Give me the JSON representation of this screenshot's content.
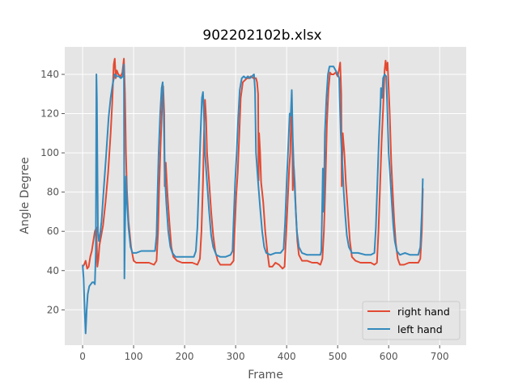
{
  "chart_data": {
    "type": "line",
    "title": "902202102b.xlsx",
    "xlabel": "Frame",
    "ylabel": "Angle Degree",
    "xlim": [
      -35,
      752
    ],
    "ylim": [
      2,
      154
    ],
    "xticks": [
      0,
      100,
      200,
      300,
      400,
      500,
      600,
      700
    ],
    "yticks": [
      20,
      40,
      60,
      80,
      100,
      120,
      140
    ],
    "grid": true,
    "legend_position": "lower-right",
    "series": [
      {
        "name": "right hand",
        "color": "#E24A33",
        "points": [
          [
            0,
            42
          ],
          [
            3,
            43
          ],
          [
            6,
            45
          ],
          [
            9,
            41
          ],
          [
            12,
            42
          ],
          [
            15,
            47
          ],
          [
            18,
            50
          ],
          [
            21,
            55
          ],
          [
            24,
            60
          ],
          [
            27,
            62
          ],
          [
            29,
            42
          ],
          [
            31,
            46
          ],
          [
            33,
            53
          ],
          [
            36,
            57
          ],
          [
            40,
            63
          ],
          [
            45,
            75
          ],
          [
            50,
            90
          ],
          [
            55,
            110
          ],
          [
            58,
            125
          ],
          [
            61,
            145
          ],
          [
            63,
            148
          ],
          [
            65,
            138
          ],
          [
            67,
            142
          ],
          [
            70,
            140
          ],
          [
            75,
            139
          ],
          [
            78,
            141
          ],
          [
            81,
            148
          ],
          [
            83,
            130
          ],
          [
            85,
            100
          ],
          [
            87,
            80
          ],
          [
            90,
            65
          ],
          [
            95,
            52
          ],
          [
            100,
            45
          ],
          [
            105,
            44
          ],
          [
            115,
            44
          ],
          [
            130,
            44
          ],
          [
            140,
            43
          ],
          [
            145,
            45
          ],
          [
            148,
            60
          ],
          [
            150,
            82
          ],
          [
            153,
            105
          ],
          [
            156,
            125
          ],
          [
            158,
            134
          ],
          [
            160,
            120
          ],
          [
            161,
            83
          ],
          [
            163,
            95
          ],
          [
            166,
            80
          ],
          [
            170,
            65
          ],
          [
            174,
            52
          ],
          [
            178,
            47
          ],
          [
            185,
            45
          ],
          [
            195,
            44
          ],
          [
            205,
            44
          ],
          [
            215,
            44
          ],
          [
            225,
            43
          ],
          [
            230,
            46
          ],
          [
            233,
            60
          ],
          [
            236,
            85
          ],
          [
            238,
            110
          ],
          [
            240,
            127
          ],
          [
            242,
            118
          ],
          [
            244,
            100
          ],
          [
            248,
            85
          ],
          [
            252,
            70
          ],
          [
            256,
            58
          ],
          [
            260,
            50
          ],
          [
            265,
            45
          ],
          [
            270,
            43
          ],
          [
            280,
            43
          ],
          [
            290,
            43
          ],
          [
            296,
            45
          ],
          [
            298,
            60
          ],
          [
            301,
            78
          ],
          [
            304,
            90
          ],
          [
            307,
            108
          ],
          [
            310,
            128
          ],
          [
            314,
            136
          ],
          [
            318,
            137
          ],
          [
            322,
            138
          ],
          [
            326,
            138
          ],
          [
            330,
            139
          ],
          [
            335,
            138
          ],
          [
            340,
            138
          ],
          [
            342,
            136
          ],
          [
            344,
            130
          ],
          [
            345,
            86
          ],
          [
            346,
            110
          ],
          [
            348,
            100
          ],
          [
            350,
            85
          ],
          [
            354,
            75
          ],
          [
            358,
            60
          ],
          [
            362,
            50
          ],
          [
            366,
            42
          ],
          [
            372,
            42
          ],
          [
            378,
            44
          ],
          [
            385,
            43
          ],
          [
            392,
            41
          ],
          [
            396,
            42
          ],
          [
            399,
            58
          ],
          [
            402,
            75
          ],
          [
            405,
            92
          ],
          [
            407,
            100
          ],
          [
            409,
            120
          ],
          [
            411,
            112
          ],
          [
            412,
            81
          ],
          [
            414,
            93
          ],
          [
            416,
            85
          ],
          [
            418,
            70
          ],
          [
            421,
            55
          ],
          [
            424,
            48
          ],
          [
            430,
            45
          ],
          [
            440,
            45
          ],
          [
            450,
            44
          ],
          [
            460,
            44
          ],
          [
            466,
            43
          ],
          [
            470,
            46
          ],
          [
            473,
            60
          ],
          [
            476,
            85
          ],
          [
            479,
            115
          ],
          [
            482,
            132
          ],
          [
            485,
            141
          ],
          [
            488,
            140
          ],
          [
            492,
            140
          ],
          [
            496,
            141
          ],
          [
            500,
            139
          ],
          [
            503,
            143
          ],
          [
            505,
            146
          ],
          [
            507,
            130
          ],
          [
            508,
            83
          ],
          [
            510,
            110
          ],
          [
            513,
            100
          ],
          [
            516,
            85
          ],
          [
            520,
            70
          ],
          [
            524,
            55
          ],
          [
            528,
            47
          ],
          [
            535,
            45
          ],
          [
            545,
            44
          ],
          [
            555,
            44
          ],
          [
            565,
            44
          ],
          [
            572,
            43
          ],
          [
            577,
            44
          ],
          [
            580,
            60
          ],
          [
            583,
            82
          ],
          [
            586,
            105
          ],
          [
            589,
            122
          ],
          [
            592,
            142
          ],
          [
            594,
            147
          ],
          [
            596,
            142
          ],
          [
            598,
            146
          ],
          [
            600,
            133
          ],
          [
            602,
            120
          ],
          [
            605,
            95
          ],
          [
            608,
            80
          ],
          [
            611,
            65
          ],
          [
            614,
            54
          ],
          [
            618,
            46
          ],
          [
            622,
            43
          ],
          [
            630,
            43
          ],
          [
            640,
            44
          ],
          [
            650,
            44
          ],
          [
            658,
            44
          ],
          [
            662,
            46
          ],
          [
            665,
            60
          ],
          [
            667,
            82
          ]
        ]
      },
      {
        "name": "left hand",
        "color": "#348ABD",
        "points": [
          [
            0,
            43
          ],
          [
            2,
            36
          ],
          [
            4,
            20
          ],
          [
            6,
            8
          ],
          [
            8,
            20
          ],
          [
            10,
            28
          ],
          [
            13,
            32
          ],
          [
            16,
            33
          ],
          [
            19,
            34
          ],
          [
            22,
            34
          ],
          [
            24,
            33
          ],
          [
            26,
            50
          ],
          [
            27,
            140
          ],
          [
            28,
            128
          ],
          [
            30,
            60
          ],
          [
            32,
            55
          ],
          [
            34,
            58
          ],
          [
            37,
            65
          ],
          [
            41,
            80
          ],
          [
            46,
            98
          ],
          [
            51,
            118
          ],
          [
            55,
            128
          ],
          [
            59,
            135
          ],
          [
            63,
            140
          ],
          [
            67,
            139
          ],
          [
            71,
            139
          ],
          [
            75,
            138
          ],
          [
            79,
            139
          ],
          [
            81,
            145
          ],
          [
            82,
            36
          ],
          [
            83,
            60
          ],
          [
            85,
            88
          ],
          [
            87,
            75
          ],
          [
            90,
            62
          ],
          [
            94,
            52
          ],
          [
            98,
            49
          ],
          [
            105,
            49
          ],
          [
            115,
            50
          ],
          [
            125,
            50
          ],
          [
            135,
            50
          ],
          [
            142,
            50
          ],
          [
            145,
            58
          ],
          [
            147,
            80
          ],
          [
            149,
            100
          ],
          [
            152,
            120
          ],
          [
            155,
            133
          ],
          [
            157,
            136
          ],
          [
            159,
            120
          ],
          [
            161,
            90
          ],
          [
            164,
            75
          ],
          [
            168,
            60
          ],
          [
            172,
            52
          ],
          [
            176,
            49
          ],
          [
            182,
            47
          ],
          [
            190,
            47
          ],
          [
            200,
            47
          ],
          [
            210,
            47
          ],
          [
            218,
            47
          ],
          [
            222,
            50
          ],
          [
            225,
            62
          ],
          [
            228,
            85
          ],
          [
            231,
            108
          ],
          [
            234,
            128
          ],
          [
            236,
            131
          ],
          [
            238,
            118
          ],
          [
            240,
            100
          ],
          [
            244,
            85
          ],
          [
            248,
            70
          ],
          [
            252,
            58
          ],
          [
            256,
            52
          ],
          [
            262,
            48
          ],
          [
            270,
            47
          ],
          [
            280,
            47
          ],
          [
            290,
            48
          ],
          [
            294,
            50
          ],
          [
            296,
            65
          ],
          [
            299,
            85
          ],
          [
            302,
            100
          ],
          [
            305,
            118
          ],
          [
            308,
            132
          ],
          [
            312,
            138
          ],
          [
            316,
            139
          ],
          [
            320,
            138
          ],
          [
            324,
            139
          ],
          [
            328,
            138
          ],
          [
            332,
            139
          ],
          [
            336,
            140
          ],
          [
            338,
            132
          ],
          [
            340,
            100
          ],
          [
            344,
            85
          ],
          [
            348,
            72
          ],
          [
            352,
            60
          ],
          [
            356,
            52
          ],
          [
            360,
            49
          ],
          [
            368,
            48
          ],
          [
            378,
            49
          ],
          [
            388,
            49
          ],
          [
            394,
            51
          ],
          [
            397,
            65
          ],
          [
            400,
            85
          ],
          [
            403,
            102
          ],
          [
            406,
            120
          ],
          [
            408,
            119
          ],
          [
            410,
            132
          ],
          [
            412,
            108
          ],
          [
            414,
            92
          ],
          [
            417,
            75
          ],
          [
            420,
            60
          ],
          [
            424,
            52
          ],
          [
            430,
            49
          ],
          [
            440,
            48
          ],
          [
            450,
            48
          ],
          [
            460,
            48
          ],
          [
            466,
            48
          ],
          [
            468,
            50
          ],
          [
            470,
            78
          ],
          [
            471,
            92
          ],
          [
            472,
            70
          ],
          [
            473,
            75
          ],
          [
            475,
            110
          ],
          [
            478,
            128
          ],
          [
            481,
            140
          ],
          [
            484,
            144
          ],
          [
            488,
            144
          ],
          [
            492,
            144
          ],
          [
            496,
            142
          ],
          [
            500,
            140
          ],
          [
            503,
            138
          ],
          [
            504,
            128
          ],
          [
            506,
            110
          ],
          [
            509,
            95
          ],
          [
            512,
            80
          ],
          [
            515,
            68
          ],
          [
            518,
            58
          ],
          [
            522,
            52
          ],
          [
            528,
            49
          ],
          [
            540,
            49
          ],
          [
            555,
            48
          ],
          [
            565,
            48
          ],
          [
            572,
            49
          ],
          [
            575,
            62
          ],
          [
            578,
            85
          ],
          [
            581,
            108
          ],
          [
            584,
            125
          ],
          [
            585,
            133
          ],
          [
            587,
            128
          ],
          [
            589,
            138
          ],
          [
            592,
            140
          ],
          [
            595,
            139
          ],
          [
            597,
            126
          ],
          [
            600,
            100
          ],
          [
            603,
            88
          ],
          [
            606,
            75
          ],
          [
            609,
            63
          ],
          [
            612,
            55
          ],
          [
            616,
            50
          ],
          [
            622,
            48
          ],
          [
            632,
            49
          ],
          [
            642,
            48
          ],
          [
            652,
            48
          ],
          [
            658,
            48
          ],
          [
            662,
            52
          ],
          [
            665,
            70
          ],
          [
            667,
            87
          ]
        ]
      }
    ]
  }
}
